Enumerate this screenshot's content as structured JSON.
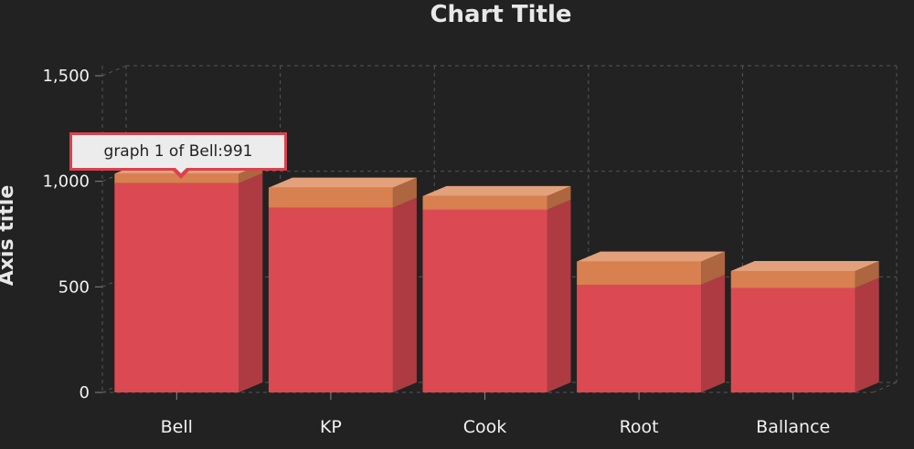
{
  "chart_data": {
    "type": "bar",
    "stacked": true,
    "three_d": true,
    "title": "Chart Title",
    "xlabel": "",
    "ylabel": "Axis title",
    "categories": [
      "Bell",
      "KP",
      "Cook",
      "Root",
      "Ballance"
    ],
    "series": [
      {
        "values": [
          991,
          875,
          865,
          510,
          495
        ],
        "color": "#db4a52"
      },
      {
        "values": [
          45,
          95,
          65,
          110,
          80
        ],
        "color": "#d8804f"
      }
    ],
    "ylim": [
      0,
      1500
    ],
    "yticks": [
      0,
      500,
      1000,
      1500
    ],
    "ytick_labels": [
      "0",
      "500",
      "1,000",
      "1,500"
    ],
    "grid": true,
    "legend": "none"
  },
  "tooltip": {
    "text": "graph 1 of Bell:991"
  },
  "colors": {
    "background": "#222222",
    "gridline": "#555555",
    "tooltip_border": "#d8434f"
  }
}
